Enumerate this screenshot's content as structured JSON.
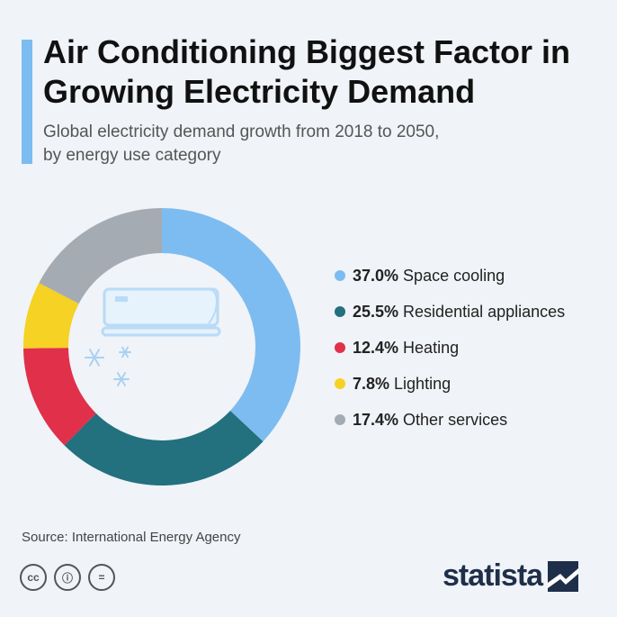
{
  "title": "Air Conditioning Biggest Factor in Growing Electricity Demand",
  "subtitle_line1": "Global electricity demand growth from 2018 to 2050,",
  "subtitle_line2": "by energy use category",
  "chart_data": {
    "type": "pie",
    "donut": true,
    "labels": [
      "Space cooling",
      "Residential appliances",
      "Heating",
      "Lighting",
      "Other services"
    ],
    "values": [
      37.0,
      25.5,
      12.4,
      7.8,
      17.4
    ],
    "value_labels": [
      "37.0%",
      "25.5%",
      "12.4%",
      "7.8%",
      "17.4%"
    ],
    "colors": [
      "#7dbcf0",
      "#23707f",
      "#e0304a",
      "#f5d223",
      "#a4abb3"
    ],
    "legend_position": "right",
    "center_illustration": [
      "air-conditioner-icon",
      "snowflake-icon"
    ]
  },
  "source": "Source: International Energy Agency",
  "license_icons": [
    "cc",
    "by",
    "nd"
  ],
  "license_glyphs": [
    "cc",
    "ⓘ",
    "="
  ],
  "brand": "statista",
  "colors": {
    "background": "#f0f3f7",
    "accent": "#7dbcf0",
    "brand": "#1f2f4a"
  }
}
